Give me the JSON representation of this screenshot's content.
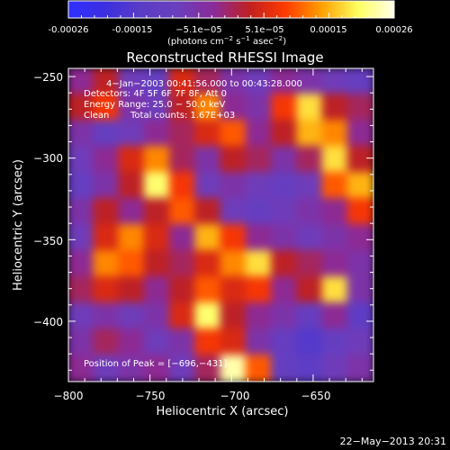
{
  "title": "Reconstructed RHESSI Image",
  "colorbar": {
    "tick_labels": [
      "-0.00026",
      "-0.00015",
      "−5.1e−05",
      "5.1e−05",
      "0.00015",
      "0.00026"
    ],
    "units_prefix": "(photons cm",
    "units_exp1": "−2",
    "units_mid": " s",
    "units_exp2": "−1",
    "units_mid2": " asec",
    "units_exp3": "−2",
    "units_suffix": ")",
    "colors": [
      "#2f2fff",
      "#3b2fe0",
      "#5a3cc6",
      "#6a3fbe",
      "#8a2b9a",
      "#c02020",
      "#ff3a00",
      "#ffa000",
      "#ffff60",
      "#ffffe8"
    ]
  },
  "annotations": {
    "date_range": "4−Jan−2003 00:41:56.000 to 00:43:28.000",
    "detectors": "Detectors: 4F 5F 6F 7F 8F, Att 0",
    "energy_range": "Energy Range: 25.0 − 50.0 keV",
    "method": "Clean",
    "total_counts": "Total counts: 1.67E+03",
    "peak_position": "Position of Peak = [−696,−431]"
  },
  "chart_data": {
    "type": "heatmap",
    "title": "Reconstructed RHESSI Image",
    "xlabel": "Heliocentric X (arcsec)",
    "ylabel": "Heliocentric Y (arcsec)",
    "xlim": [
      -800,
      -613
    ],
    "ylim": [
      -437,
      -245
    ],
    "x_ticks": [
      -800,
      -750,
      -700,
      -650
    ],
    "x_tick_labels": [
      "−800",
      "−750",
      "−700",
      "−650"
    ],
    "y_ticks": [
      -250,
      -300,
      -350,
      -400
    ],
    "y_tick_labels": [
      "−250",
      "−300",
      "−350",
      "−400"
    ],
    "colorbar_range": [
      -0.00026,
      0.00026
    ],
    "peak_position": [
      -696,
      -431
    ],
    "rows": 12,
    "cols": 12,
    "values": [
      [
        0.45,
        0.55,
        0.35,
        0.3,
        0.6,
        0.5,
        0.4,
        0.35,
        0.45,
        0.4,
        0.35,
        0.3
      ],
      [
        0.55,
        0.65,
        0.4,
        0.35,
        0.55,
        0.75,
        0.45,
        0.4,
        0.65,
        0.85,
        0.55,
        0.5
      ],
      [
        0.4,
        0.3,
        0.35,
        0.45,
        0.5,
        0.6,
        0.7,
        0.45,
        0.55,
        0.8,
        0.75,
        0.45
      ],
      [
        0.35,
        0.45,
        0.6,
        0.75,
        0.5,
        0.4,
        0.55,
        0.5,
        0.4,
        0.5,
        0.85,
        0.55
      ],
      [
        0.3,
        0.4,
        0.55,
        0.9,
        0.65,
        0.35,
        0.4,
        0.35,
        0.3,
        0.35,
        0.7,
        0.8
      ],
      [
        0.4,
        0.55,
        0.45,
        0.55,
        0.7,
        0.55,
        0.35,
        0.3,
        0.35,
        0.4,
        0.45,
        0.65
      ],
      [
        0.35,
        0.6,
        0.75,
        0.6,
        0.45,
        0.8,
        0.65,
        0.45,
        0.4,
        0.35,
        0.4,
        0.45
      ],
      [
        0.45,
        0.75,
        0.7,
        0.55,
        0.5,
        0.6,
        0.75,
        0.85,
        0.55,
        0.5,
        0.45,
        0.4
      ],
      [
        0.5,
        0.6,
        0.55,
        0.45,
        0.55,
        0.7,
        0.6,
        0.65,
        0.45,
        0.55,
        0.85,
        0.4
      ],
      [
        0.35,
        0.4,
        0.35,
        0.4,
        0.6,
        0.9,
        0.55,
        0.45,
        0.4,
        0.3,
        0.45,
        0.25
      ],
      [
        0.4,
        0.5,
        0.45,
        0.35,
        0.4,
        0.65,
        0.6,
        0.4,
        0.3,
        0.2,
        0.3,
        0.35
      ],
      [
        0.45,
        0.35,
        0.4,
        0.45,
        0.35,
        0.5,
        0.95,
        0.7,
        0.3,
        0.25,
        0.35,
        0.4
      ]
    ]
  },
  "footer": {
    "timestamp": "22−May−2013 20:31"
  }
}
